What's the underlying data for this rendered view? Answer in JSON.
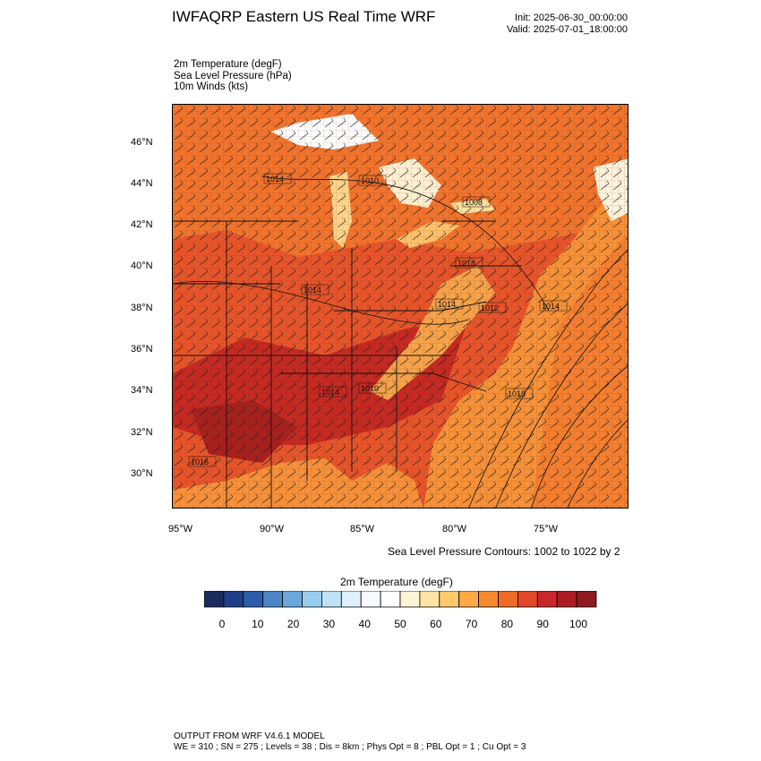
{
  "header": {
    "title": "IWFAQRP Eastern US Real Time WRF",
    "init": "Init: 2025-06-30_00:00:00",
    "valid": "Valid: 2025-07-01_18:00:00"
  },
  "fields": [
    "2m Temperature   (degF)",
    "Sea Level Pressure   (hPa)",
    "10m Winds   (kts)"
  ],
  "map": {
    "lat_labels": [
      "46°N",
      "44°N",
      "42°N",
      "40°N",
      "38°N",
      "36°N",
      "34°N",
      "32°N",
      "30°N"
    ],
    "lon_labels": [
      "95°W",
      "90°W",
      "85°W",
      "80°W",
      "75°W"
    ],
    "pressure_labels": [
      "1014",
      "1010",
      "1008",
      "1018",
      "1014",
      "1014",
      "1012",
      "1014",
      "1014",
      "1010",
      "1018",
      "1016"
    ],
    "contour_note": "Sea Level Pressure Contours: 1002 to 1022 by 2"
  },
  "colorbar": {
    "title": "2m Temperature  (degF)",
    "tick_labels": [
      "0",
      "10",
      "20",
      "30",
      "40",
      "50",
      "60",
      "70",
      "80",
      "90",
      "100"
    ],
    "colors": [
      "#1b2a5e",
      "#1e3f85",
      "#2c5ea8",
      "#4a86c5",
      "#6aa8dc",
      "#99cdf0",
      "#bfe2f7",
      "#ddf0fb",
      "#f4fafd",
      "#ffffff",
      "#fff4d6",
      "#ffe3a3",
      "#ffc96c",
      "#fdaa45",
      "#f78a2c",
      "#ef6a25",
      "#e14829",
      "#c9272a",
      "#ab1d25",
      "#8f1a1f"
    ]
  },
  "footer": {
    "line1": "OUTPUT FROM WRF V4.6.1 MODEL",
    "line2": "WE = 310 ; SN = 275 ; Levels = 38 ; Dis = 8km ; Phys Opt = 8 ; PBL Opt = 1 ; Cu Opt = 3"
  }
}
